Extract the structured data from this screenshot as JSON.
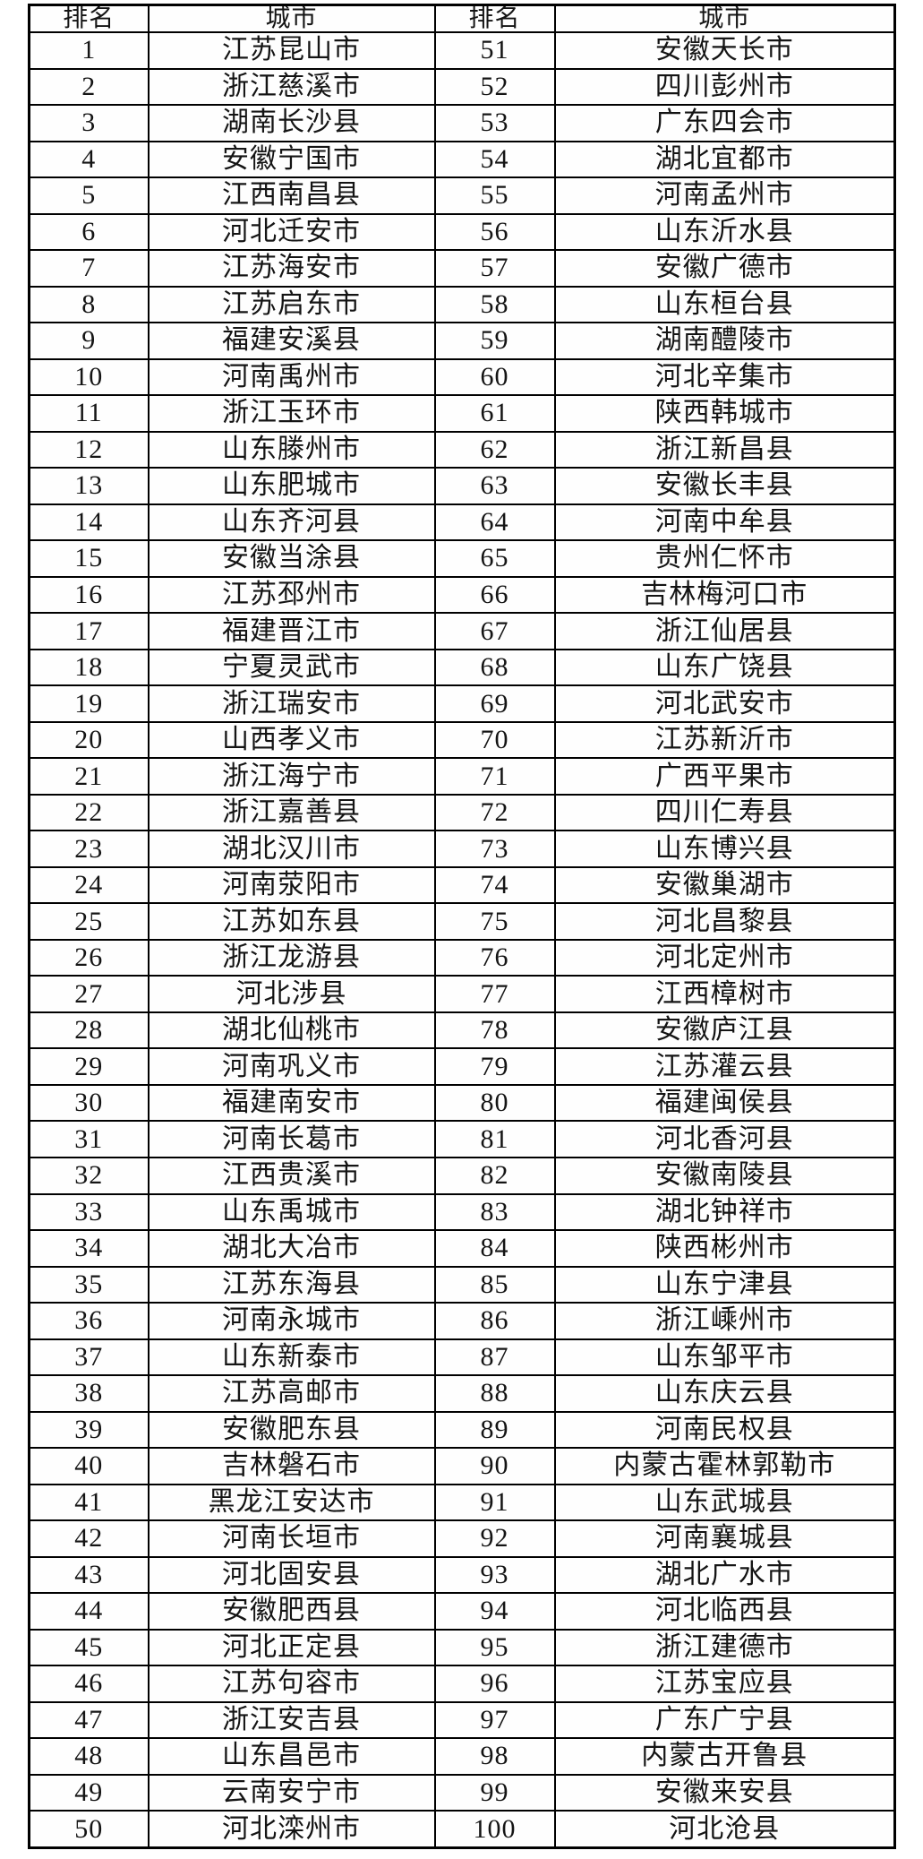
{
  "table": {
    "headers": {
      "rank": "排名",
      "city": "城市"
    },
    "left": [
      {
        "rank": "1",
        "city": "江苏昆山市"
      },
      {
        "rank": "2",
        "city": "浙江慈溪市"
      },
      {
        "rank": "3",
        "city": "湖南长沙县"
      },
      {
        "rank": "4",
        "city": "安徽宁国市"
      },
      {
        "rank": "5",
        "city": "江西南昌县"
      },
      {
        "rank": "6",
        "city": "河北迁安市"
      },
      {
        "rank": "7",
        "city": "江苏海安市"
      },
      {
        "rank": "8",
        "city": "江苏启东市"
      },
      {
        "rank": "9",
        "city": "福建安溪县"
      },
      {
        "rank": "10",
        "city": "河南禹州市"
      },
      {
        "rank": "11",
        "city": "浙江玉环市"
      },
      {
        "rank": "12",
        "city": "山东滕州市"
      },
      {
        "rank": "13",
        "city": "山东肥城市"
      },
      {
        "rank": "14",
        "city": "山东齐河县"
      },
      {
        "rank": "15",
        "city": "安徽当涂县"
      },
      {
        "rank": "16",
        "city": "江苏邳州市"
      },
      {
        "rank": "17",
        "city": "福建晋江市"
      },
      {
        "rank": "18",
        "city": "宁夏灵武市"
      },
      {
        "rank": "19",
        "city": "浙江瑞安市"
      },
      {
        "rank": "20",
        "city": "山西孝义市"
      },
      {
        "rank": "21",
        "city": "浙江海宁市"
      },
      {
        "rank": "22",
        "city": "浙江嘉善县"
      },
      {
        "rank": "23",
        "city": "湖北汉川市"
      },
      {
        "rank": "24",
        "city": "河南荥阳市"
      },
      {
        "rank": "25",
        "city": "江苏如东县"
      },
      {
        "rank": "26",
        "city": "浙江龙游县"
      },
      {
        "rank": "27",
        "city": "河北涉县"
      },
      {
        "rank": "28",
        "city": "湖北仙桃市"
      },
      {
        "rank": "29",
        "city": "河南巩义市"
      },
      {
        "rank": "30",
        "city": "福建南安市"
      },
      {
        "rank": "31",
        "city": "河南长葛市"
      },
      {
        "rank": "32",
        "city": "江西贵溪市"
      },
      {
        "rank": "33",
        "city": "山东禹城市"
      },
      {
        "rank": "34",
        "city": "湖北大冶市"
      },
      {
        "rank": "35",
        "city": "江苏东海县"
      },
      {
        "rank": "36",
        "city": "河南永城市"
      },
      {
        "rank": "37",
        "city": "山东新泰市"
      },
      {
        "rank": "38",
        "city": "江苏高邮市"
      },
      {
        "rank": "39",
        "city": "安徽肥东县"
      },
      {
        "rank": "40",
        "city": "吉林磐石市"
      },
      {
        "rank": "41",
        "city": "黑龙江安达市"
      },
      {
        "rank": "42",
        "city": "河南长垣市"
      },
      {
        "rank": "43",
        "city": "河北固安县"
      },
      {
        "rank": "44",
        "city": "安徽肥西县"
      },
      {
        "rank": "45",
        "city": "河北正定县"
      },
      {
        "rank": "46",
        "city": "江苏句容市"
      },
      {
        "rank": "47",
        "city": "浙江安吉县"
      },
      {
        "rank": "48",
        "city": "山东昌邑市"
      },
      {
        "rank": "49",
        "city": "云南安宁市"
      },
      {
        "rank": "50",
        "city": "河北滦州市"
      }
    ],
    "right": [
      {
        "rank": "51",
        "city": "安徽天长市"
      },
      {
        "rank": "52",
        "city": "四川彭州市"
      },
      {
        "rank": "53",
        "city": "广东四会市"
      },
      {
        "rank": "54",
        "city": "湖北宜都市"
      },
      {
        "rank": "55",
        "city": "河南孟州市"
      },
      {
        "rank": "56",
        "city": "山东沂水县"
      },
      {
        "rank": "57",
        "city": "安徽广德市"
      },
      {
        "rank": "58",
        "city": "山东桓台县"
      },
      {
        "rank": "59",
        "city": "湖南醴陵市"
      },
      {
        "rank": "60",
        "city": "河北辛集市"
      },
      {
        "rank": "61",
        "city": "陕西韩城市"
      },
      {
        "rank": "62",
        "city": "浙江新昌县"
      },
      {
        "rank": "63",
        "city": "安徽长丰县"
      },
      {
        "rank": "64",
        "city": "河南中牟县"
      },
      {
        "rank": "65",
        "city": "贵州仁怀市"
      },
      {
        "rank": "66",
        "city": "吉林梅河口市"
      },
      {
        "rank": "67",
        "city": "浙江仙居县"
      },
      {
        "rank": "68",
        "city": "山东广饶县"
      },
      {
        "rank": "69",
        "city": "河北武安市"
      },
      {
        "rank": "70",
        "city": "江苏新沂市"
      },
      {
        "rank": "71",
        "city": "广西平果市"
      },
      {
        "rank": "72",
        "city": "四川仁寿县"
      },
      {
        "rank": "73",
        "city": "山东博兴县"
      },
      {
        "rank": "74",
        "city": "安徽巢湖市"
      },
      {
        "rank": "75",
        "city": "河北昌黎县"
      },
      {
        "rank": "76",
        "city": "河北定州市"
      },
      {
        "rank": "77",
        "city": "江西樟树市"
      },
      {
        "rank": "78",
        "city": "安徽庐江县"
      },
      {
        "rank": "79",
        "city": "江苏灌云县"
      },
      {
        "rank": "80",
        "city": "福建闽侯县"
      },
      {
        "rank": "81",
        "city": "河北香河县"
      },
      {
        "rank": "82",
        "city": "安徽南陵县"
      },
      {
        "rank": "83",
        "city": "湖北钟祥市"
      },
      {
        "rank": "84",
        "city": "陕西彬州市"
      },
      {
        "rank": "85",
        "city": "山东宁津县"
      },
      {
        "rank": "86",
        "city": "浙江嵊州市"
      },
      {
        "rank": "87",
        "city": "山东邹平市"
      },
      {
        "rank": "88",
        "city": "山东庆云县"
      },
      {
        "rank": "89",
        "city": "河南民权县"
      },
      {
        "rank": "90",
        "city": "内蒙古霍林郭勒市"
      },
      {
        "rank": "91",
        "city": "山东武城县"
      },
      {
        "rank": "92",
        "city": "河南襄城县"
      },
      {
        "rank": "93",
        "city": "湖北广水市"
      },
      {
        "rank": "94",
        "city": "河北临西县"
      },
      {
        "rank": "95",
        "city": "浙江建德市"
      },
      {
        "rank": "96",
        "city": "江苏宝应县"
      },
      {
        "rank": "97",
        "city": "广东广宁县"
      },
      {
        "rank": "98",
        "city": "内蒙古开鲁县"
      },
      {
        "rank": "99",
        "city": "安徽来安县"
      },
      {
        "rank": "100",
        "city": "河北沧县"
      }
    ]
  }
}
